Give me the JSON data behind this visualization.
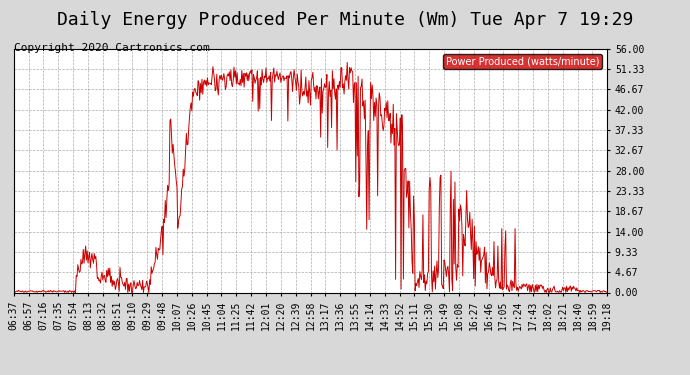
{
  "title": "Daily Energy Produced Per Minute (Wm) Tue Apr 7 19:29",
  "copyright": "Copyright 2020 Cartronics.com",
  "legend_label": "Power Produced (watts/minute)",
  "legend_bg": "#cc0000",
  "legend_text_color": "#ffffff",
  "line_color": "#cc0000",
  "background_color": "#d8d8d8",
  "plot_bg_color": "#ffffff",
  "grid_color": "#999999",
  "ylim": [
    0,
    56
  ],
  "yticks": [
    0.0,
    4.67,
    9.33,
    14.0,
    18.67,
    23.33,
    28.0,
    32.67,
    37.33,
    42.0,
    46.67,
    51.33,
    56.0
  ],
  "xtick_labels": [
    "06:37",
    "06:57",
    "07:16",
    "07:35",
    "07:54",
    "08:13",
    "08:32",
    "08:51",
    "09:10",
    "09:29",
    "09:48",
    "10:07",
    "10:26",
    "10:45",
    "11:04",
    "11:25",
    "11:42",
    "12:01",
    "12:20",
    "12:39",
    "12:58",
    "13:17",
    "13:36",
    "13:55",
    "14:14",
    "14:33",
    "14:52",
    "15:11",
    "15:30",
    "15:49",
    "16:08",
    "16:27",
    "16:46",
    "17:05",
    "17:24",
    "17:43",
    "18:02",
    "18:21",
    "18:40",
    "18:59",
    "19:18"
  ],
  "title_fontsize": 13,
  "tick_fontsize": 7,
  "copyright_fontsize": 8
}
